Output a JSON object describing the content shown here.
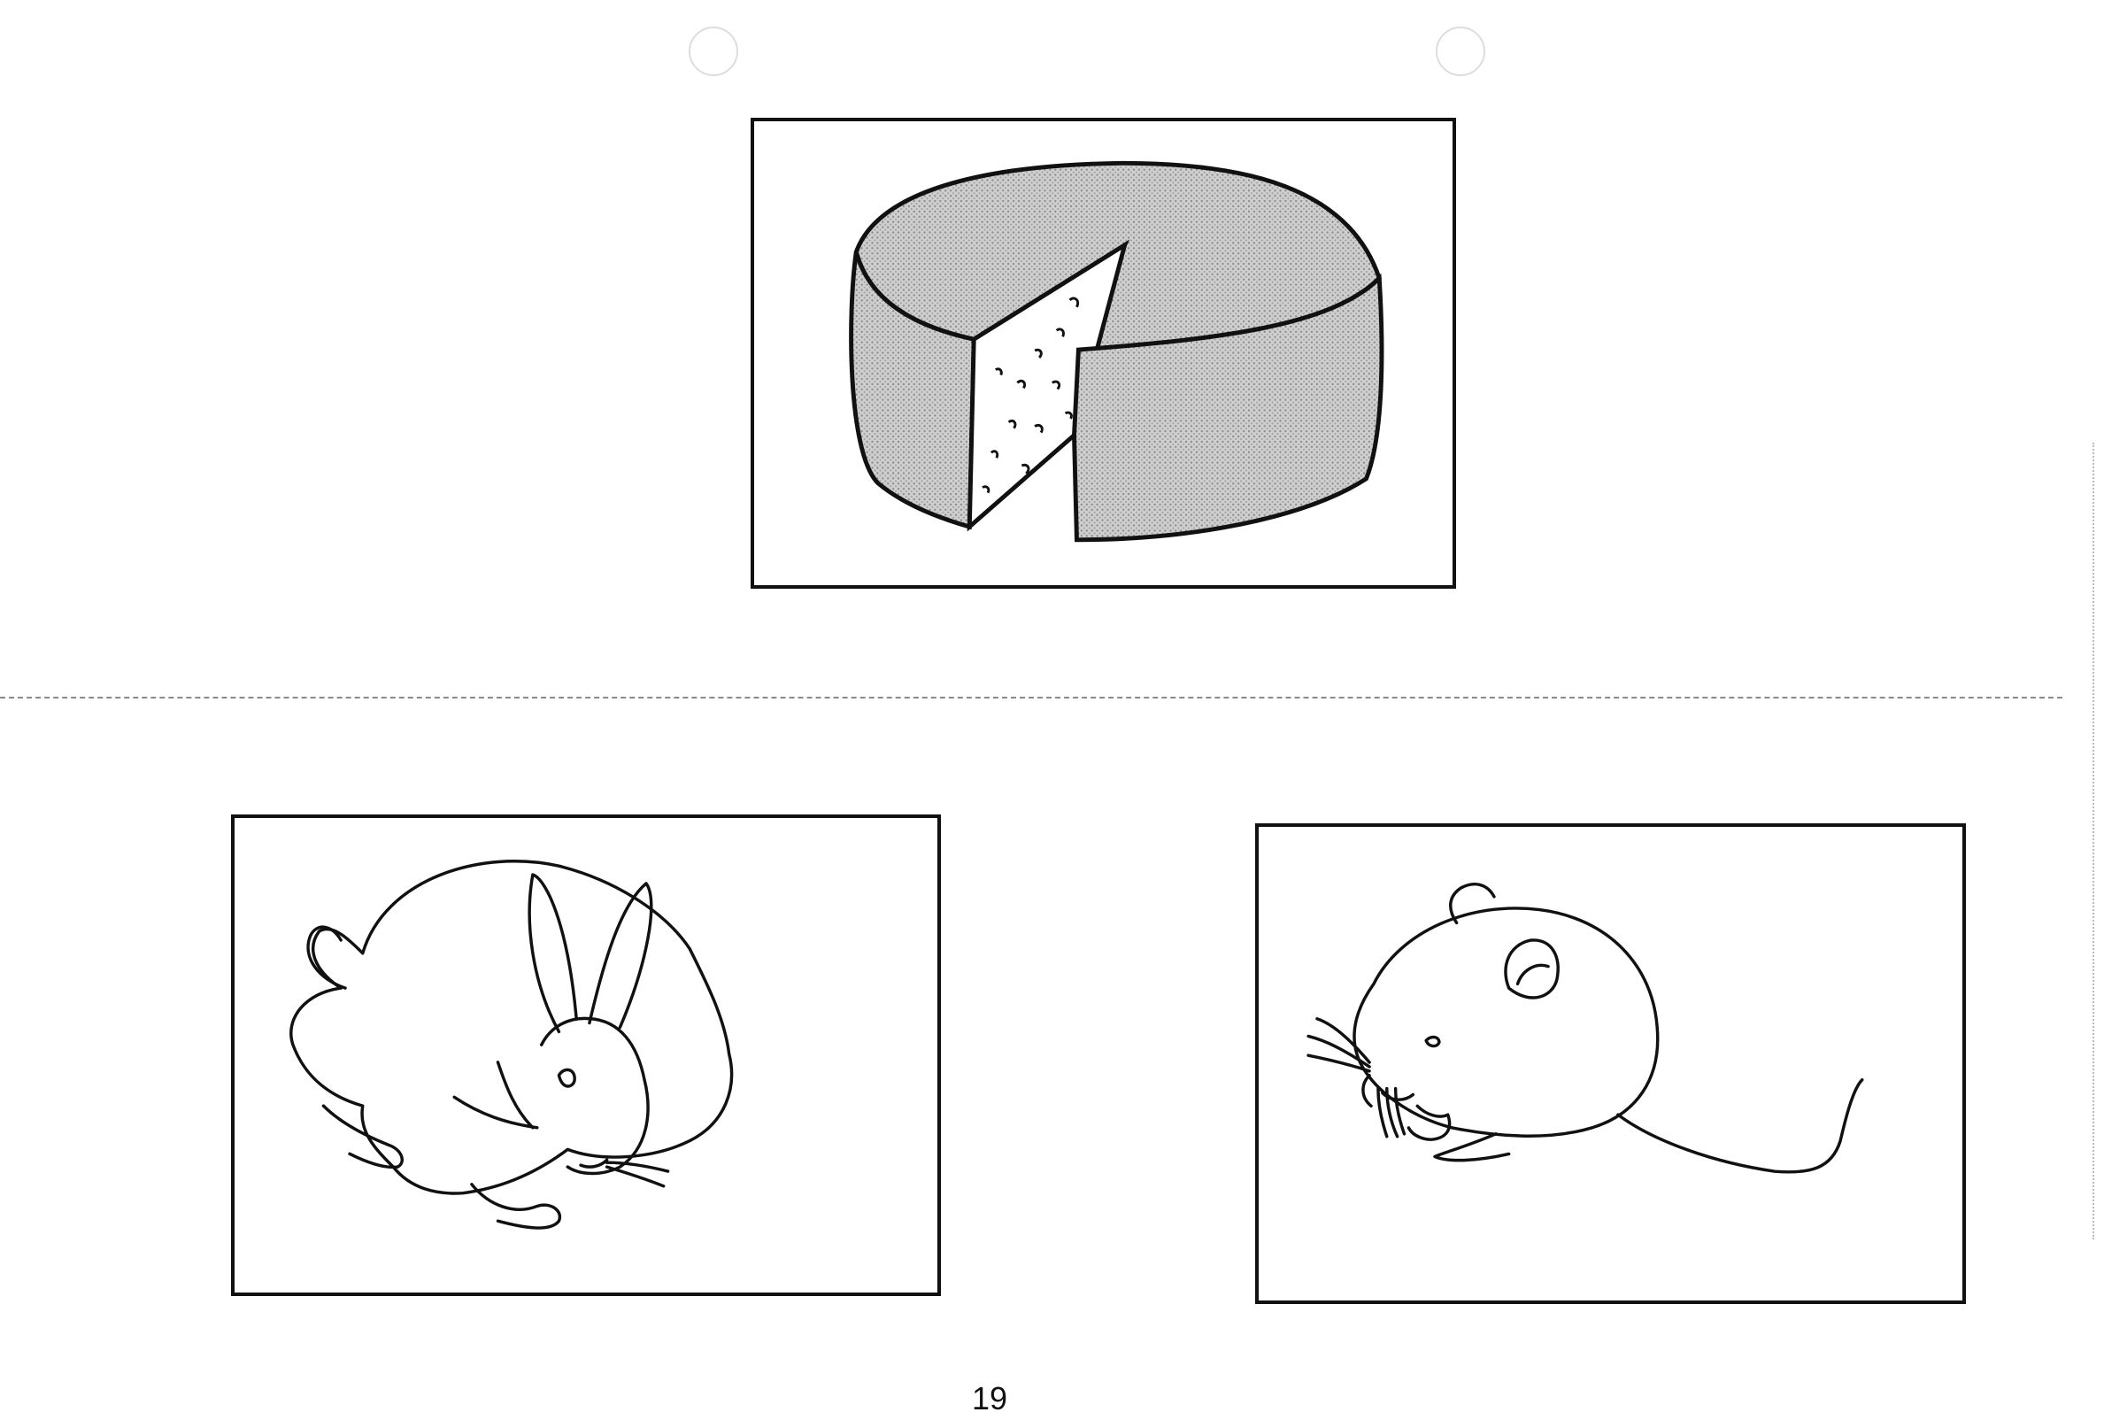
{
  "page": {
    "number": "19"
  },
  "illustrations": [
    {
      "id": "cheese",
      "subject": "cheese-wheel"
    },
    {
      "id": "rabbit",
      "subject": "rabbit"
    },
    {
      "id": "mouse",
      "subject": "mouse"
    }
  ],
  "colors": {
    "ink": "#111111",
    "shading": "#bdbdbd",
    "cut_line": "#8a8a8a",
    "paper": "#ffffff"
  }
}
